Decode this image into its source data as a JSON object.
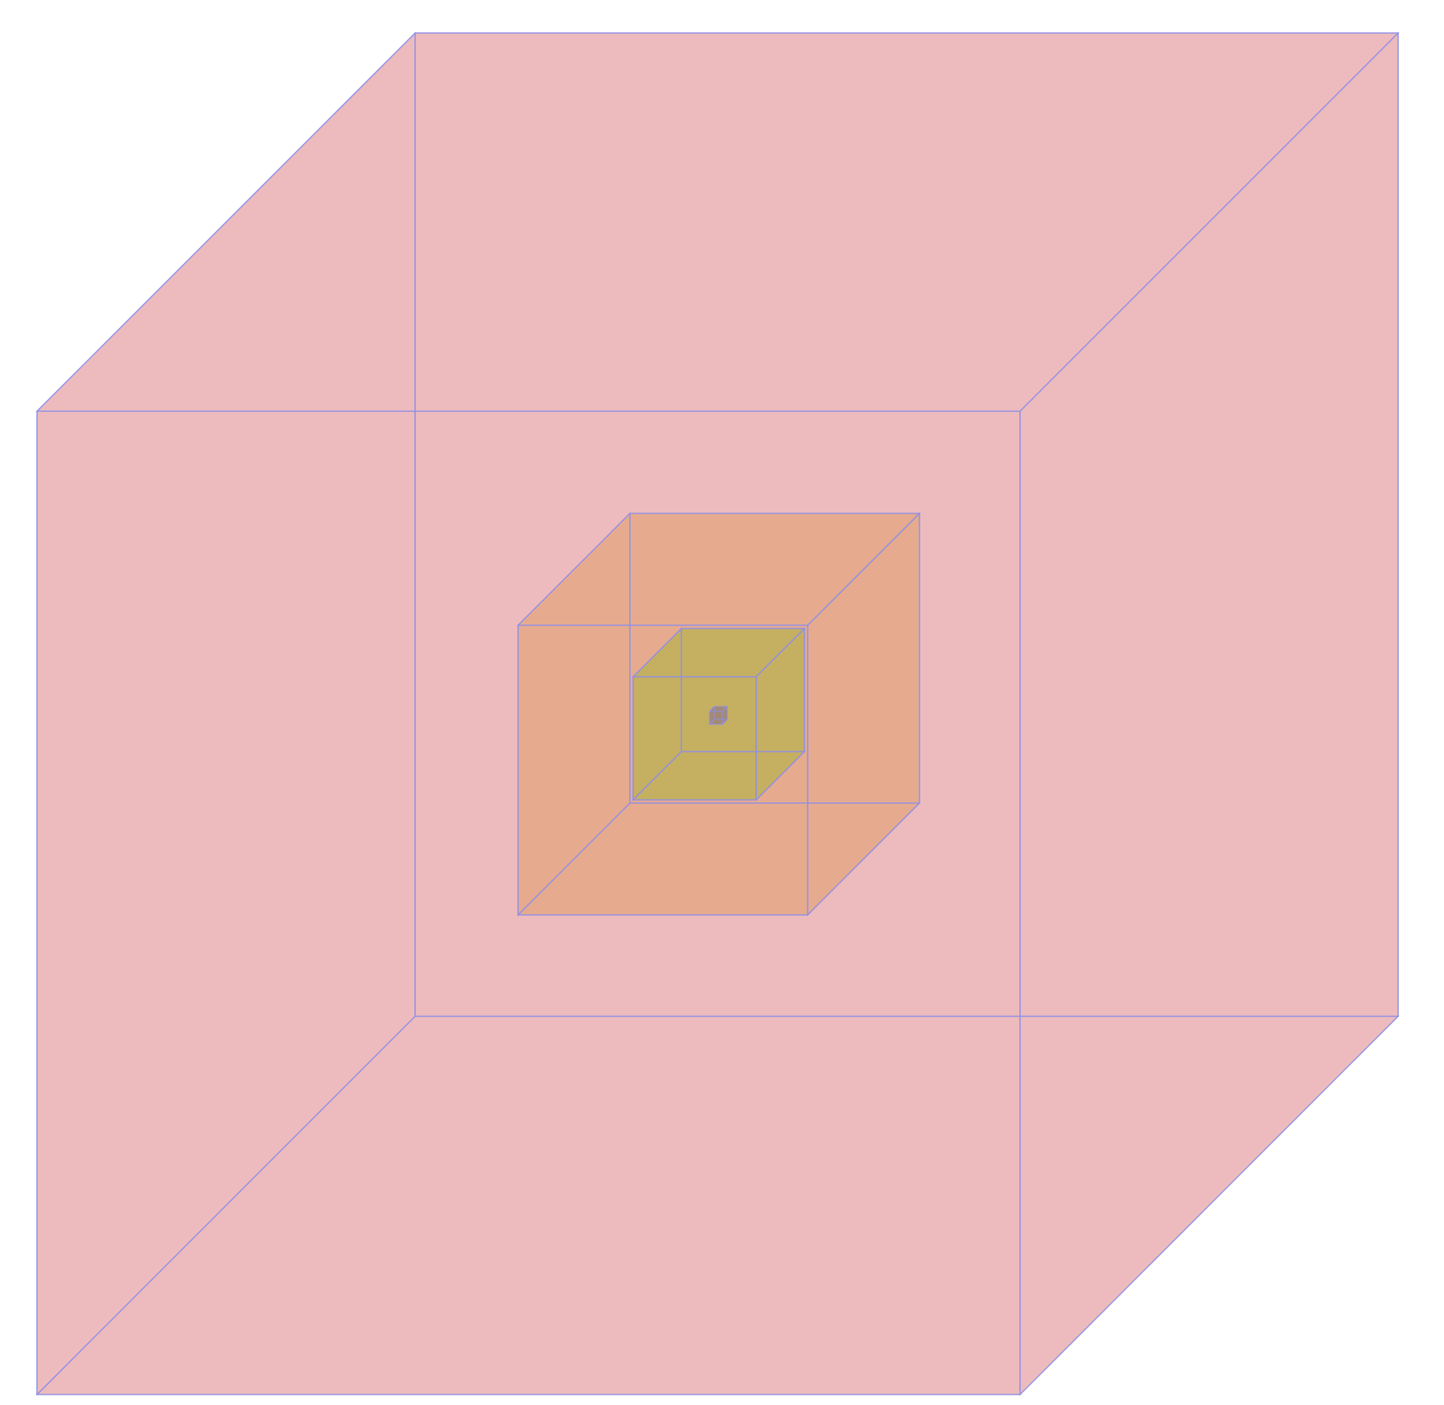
{
  "diagram": {
    "edge_color": "#8f8fe6",
    "cubes": [
      {
        "name": "cube-largest",
        "fill": "#e8a8ab",
        "opacity": 0.78
      },
      {
        "name": "cube-large",
        "fill": "#e3a57c",
        "opacity": 0.72
      },
      {
        "name": "cube-medium",
        "fill": "#b8b050",
        "opacity": 0.72
      },
      {
        "name": "cube-small",
        "fill": "#9a7f78",
        "opacity": 0.8
      }
    ]
  }
}
